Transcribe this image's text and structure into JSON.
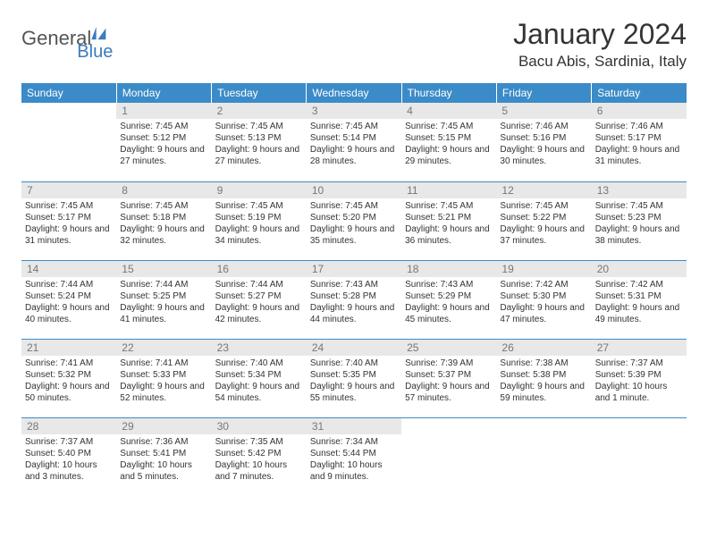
{
  "logo": {
    "text1": "General",
    "text2": "Blue"
  },
  "title": "January 2024",
  "location": "Bacu Abis, Sardinia, Italy",
  "colors": {
    "header_bg": "#3b8bc8",
    "header_text": "#ffffff",
    "border": "#3b8bc8",
    "daynum_bg": "#e8e8e8",
    "daynum_text": "#777777",
    "body_text": "#333333"
  },
  "weekdays": [
    "Sunday",
    "Monday",
    "Tuesday",
    "Wednesday",
    "Thursday",
    "Friday",
    "Saturday"
  ],
  "weeks": [
    [
      null,
      {
        "n": "1",
        "sr": "Sunrise: 7:45 AM",
        "ss": "Sunset: 5:12 PM",
        "dl": "Daylight: 9 hours and 27 minutes."
      },
      {
        "n": "2",
        "sr": "Sunrise: 7:45 AM",
        "ss": "Sunset: 5:13 PM",
        "dl": "Daylight: 9 hours and 27 minutes."
      },
      {
        "n": "3",
        "sr": "Sunrise: 7:45 AM",
        "ss": "Sunset: 5:14 PM",
        "dl": "Daylight: 9 hours and 28 minutes."
      },
      {
        "n": "4",
        "sr": "Sunrise: 7:45 AM",
        "ss": "Sunset: 5:15 PM",
        "dl": "Daylight: 9 hours and 29 minutes."
      },
      {
        "n": "5",
        "sr": "Sunrise: 7:46 AM",
        "ss": "Sunset: 5:16 PM",
        "dl": "Daylight: 9 hours and 30 minutes."
      },
      {
        "n": "6",
        "sr": "Sunrise: 7:46 AM",
        "ss": "Sunset: 5:17 PM",
        "dl": "Daylight: 9 hours and 31 minutes."
      }
    ],
    [
      {
        "n": "7",
        "sr": "Sunrise: 7:45 AM",
        "ss": "Sunset: 5:17 PM",
        "dl": "Daylight: 9 hours and 31 minutes."
      },
      {
        "n": "8",
        "sr": "Sunrise: 7:45 AM",
        "ss": "Sunset: 5:18 PM",
        "dl": "Daylight: 9 hours and 32 minutes."
      },
      {
        "n": "9",
        "sr": "Sunrise: 7:45 AM",
        "ss": "Sunset: 5:19 PM",
        "dl": "Daylight: 9 hours and 34 minutes."
      },
      {
        "n": "10",
        "sr": "Sunrise: 7:45 AM",
        "ss": "Sunset: 5:20 PM",
        "dl": "Daylight: 9 hours and 35 minutes."
      },
      {
        "n": "11",
        "sr": "Sunrise: 7:45 AM",
        "ss": "Sunset: 5:21 PM",
        "dl": "Daylight: 9 hours and 36 minutes."
      },
      {
        "n": "12",
        "sr": "Sunrise: 7:45 AM",
        "ss": "Sunset: 5:22 PM",
        "dl": "Daylight: 9 hours and 37 minutes."
      },
      {
        "n": "13",
        "sr": "Sunrise: 7:45 AM",
        "ss": "Sunset: 5:23 PM",
        "dl": "Daylight: 9 hours and 38 minutes."
      }
    ],
    [
      {
        "n": "14",
        "sr": "Sunrise: 7:44 AM",
        "ss": "Sunset: 5:24 PM",
        "dl": "Daylight: 9 hours and 40 minutes."
      },
      {
        "n": "15",
        "sr": "Sunrise: 7:44 AM",
        "ss": "Sunset: 5:25 PM",
        "dl": "Daylight: 9 hours and 41 minutes."
      },
      {
        "n": "16",
        "sr": "Sunrise: 7:44 AM",
        "ss": "Sunset: 5:27 PM",
        "dl": "Daylight: 9 hours and 42 minutes."
      },
      {
        "n": "17",
        "sr": "Sunrise: 7:43 AM",
        "ss": "Sunset: 5:28 PM",
        "dl": "Daylight: 9 hours and 44 minutes."
      },
      {
        "n": "18",
        "sr": "Sunrise: 7:43 AM",
        "ss": "Sunset: 5:29 PM",
        "dl": "Daylight: 9 hours and 45 minutes."
      },
      {
        "n": "19",
        "sr": "Sunrise: 7:42 AM",
        "ss": "Sunset: 5:30 PM",
        "dl": "Daylight: 9 hours and 47 minutes."
      },
      {
        "n": "20",
        "sr": "Sunrise: 7:42 AM",
        "ss": "Sunset: 5:31 PM",
        "dl": "Daylight: 9 hours and 49 minutes."
      }
    ],
    [
      {
        "n": "21",
        "sr": "Sunrise: 7:41 AM",
        "ss": "Sunset: 5:32 PM",
        "dl": "Daylight: 9 hours and 50 minutes."
      },
      {
        "n": "22",
        "sr": "Sunrise: 7:41 AM",
        "ss": "Sunset: 5:33 PM",
        "dl": "Daylight: 9 hours and 52 minutes."
      },
      {
        "n": "23",
        "sr": "Sunrise: 7:40 AM",
        "ss": "Sunset: 5:34 PM",
        "dl": "Daylight: 9 hours and 54 minutes."
      },
      {
        "n": "24",
        "sr": "Sunrise: 7:40 AM",
        "ss": "Sunset: 5:35 PM",
        "dl": "Daylight: 9 hours and 55 minutes."
      },
      {
        "n": "25",
        "sr": "Sunrise: 7:39 AM",
        "ss": "Sunset: 5:37 PM",
        "dl": "Daylight: 9 hours and 57 minutes."
      },
      {
        "n": "26",
        "sr": "Sunrise: 7:38 AM",
        "ss": "Sunset: 5:38 PM",
        "dl": "Daylight: 9 hours and 59 minutes."
      },
      {
        "n": "27",
        "sr": "Sunrise: 7:37 AM",
        "ss": "Sunset: 5:39 PM",
        "dl": "Daylight: 10 hours and 1 minute."
      }
    ],
    [
      {
        "n": "28",
        "sr": "Sunrise: 7:37 AM",
        "ss": "Sunset: 5:40 PM",
        "dl": "Daylight: 10 hours and 3 minutes."
      },
      {
        "n": "29",
        "sr": "Sunrise: 7:36 AM",
        "ss": "Sunset: 5:41 PM",
        "dl": "Daylight: 10 hours and 5 minutes."
      },
      {
        "n": "30",
        "sr": "Sunrise: 7:35 AM",
        "ss": "Sunset: 5:42 PM",
        "dl": "Daylight: 10 hours and 7 minutes."
      },
      {
        "n": "31",
        "sr": "Sunrise: 7:34 AM",
        "ss": "Sunset: 5:44 PM",
        "dl": "Daylight: 10 hours and 9 minutes."
      },
      null,
      null,
      null
    ]
  ]
}
